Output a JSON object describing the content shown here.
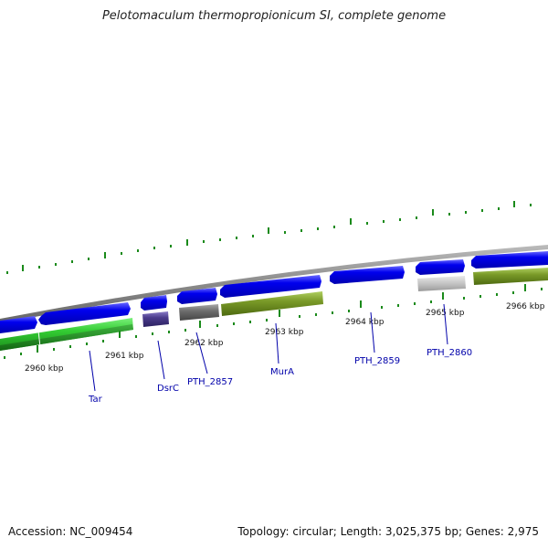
{
  "title": "Pelotomaculum thermopropionicum SI, complete genome",
  "footer": {
    "accession": "Accession: NC_009454",
    "stats": "Topology: circular; Length: 3,025,375 bp; Genes: 2,975"
  },
  "kbp_labels": [
    "2960 kbp",
    "2961 kbp",
    "2962 kbp",
    "2963 kbp",
    "2964 kbp",
    "2965 kbp",
    "2966 kbp"
  ],
  "gene_labels": [
    "Tar",
    "DsrC",
    "PTH_2857",
    "MurA",
    "PTH_2859",
    "PTH_2860"
  ],
  "colors": {
    "forward_cds": "#0000ee",
    "tar": "#33cc33",
    "dsrc": "#4b3c8c",
    "grey_gene": "#6e6e6e",
    "mura": "#7a9a28",
    "pth2860": "#c4c4c4",
    "olive": "#5f8a1e",
    "backbone": "#8a8a8a",
    "ticks": "#1a8a1a",
    "label_blue": "#0000aa"
  }
}
